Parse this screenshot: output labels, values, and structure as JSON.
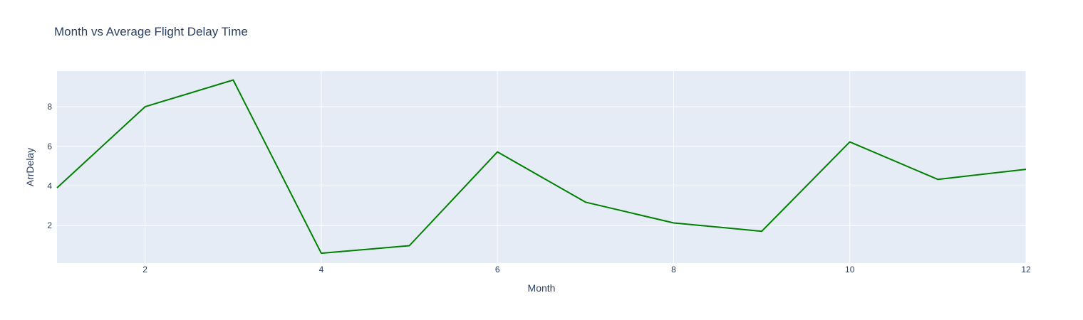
{
  "chart_data": {
    "type": "line",
    "title": "Month vs Average Flight Delay Time",
    "xlabel": "Month",
    "ylabel": "ArrDelay",
    "xlim": [
      1,
      12
    ],
    "ylim": [
      0.1,
      9.8
    ],
    "xticks": [
      2,
      4,
      6,
      8,
      10,
      12
    ],
    "yticks": [
      2,
      4,
      6,
      8
    ],
    "grid": true,
    "series": [
      {
        "x": [
          1,
          2,
          3,
          4,
          5,
          6,
          7,
          8,
          9,
          10,
          11,
          12
        ],
        "values": [
          3.9,
          8.0,
          9.35,
          0.6,
          0.98,
          5.72,
          3.18,
          2.13,
          1.71,
          6.22,
          4.33,
          4.84
        ],
        "color": "#008000"
      }
    ],
    "colors": {
      "plot_background": "#e5ecf6",
      "grid": "#ffffff",
      "text": "#2a3f5f"
    }
  }
}
